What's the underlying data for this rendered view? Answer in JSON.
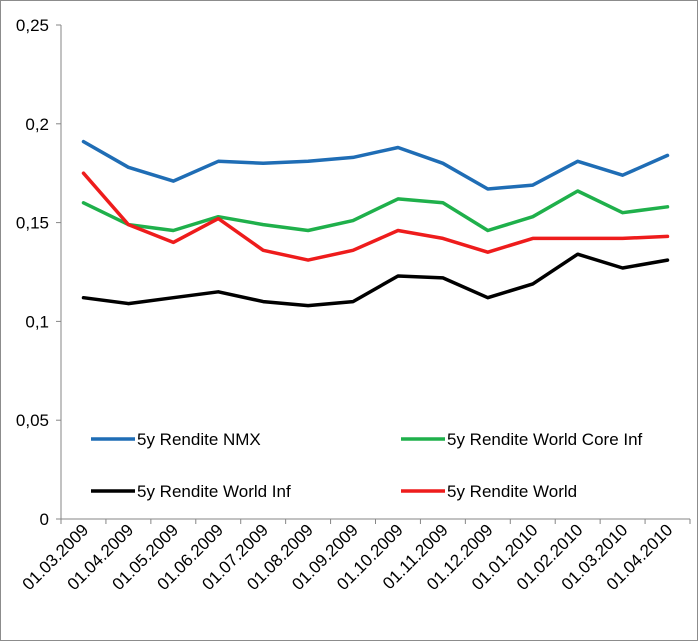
{
  "chart_data": {
    "type": "line",
    "title": "",
    "xlabel": "",
    "ylabel": "",
    "ylim": [
      0,
      0.25
    ],
    "y_ticks": [
      0,
      0.05,
      0.1,
      0.15,
      0.2,
      0.25
    ],
    "y_tick_labels": [
      "0",
      "0,05",
      "0,1",
      "0,15",
      "0,2",
      "0,25"
    ],
    "categories": [
      "01.03.2009",
      "01.04.2009",
      "01.05.2009",
      "01.06.2009",
      "01.07.2009",
      "01.08.2009",
      "01.09.2009",
      "01.10.2009",
      "01.11.2009",
      "01.12.2009",
      "01.01.2010",
      "01.02.2010",
      "01.03.2010",
      "01.04.2010"
    ],
    "grid": false,
    "legend_position": "inside-bottom",
    "series": [
      {
        "name": "5y Rendite NMX",
        "color": "#1F6DB5",
        "values": [
          0.191,
          0.178,
          0.171,
          0.181,
          0.18,
          0.181,
          0.183,
          0.188,
          0.18,
          0.167,
          0.169,
          0.181,
          0.174,
          0.184
        ]
      },
      {
        "name": "5y Rendite World Core Inf",
        "color": "#1FB04B",
        "values": [
          0.16,
          0.149,
          0.146,
          0.153,
          0.149,
          0.146,
          0.151,
          0.162,
          0.16,
          0.146,
          0.153,
          0.166,
          0.155,
          0.158
        ]
      },
      {
        "name": "5y Rendite World Inf",
        "color": "#000000",
        "values": [
          0.112,
          0.109,
          0.112,
          0.115,
          0.11,
          0.108,
          0.11,
          0.123,
          0.122,
          0.112,
          0.119,
          0.134,
          0.127,
          0.131
        ]
      },
      {
        "name": "5y Rendite World",
        "color": "#EE1C1C",
        "values": [
          0.175,
          0.149,
          0.14,
          0.152,
          0.136,
          0.131,
          0.136,
          0.146,
          0.142,
          0.135,
          0.142,
          0.142,
          0.142,
          0.143
        ]
      }
    ]
  }
}
